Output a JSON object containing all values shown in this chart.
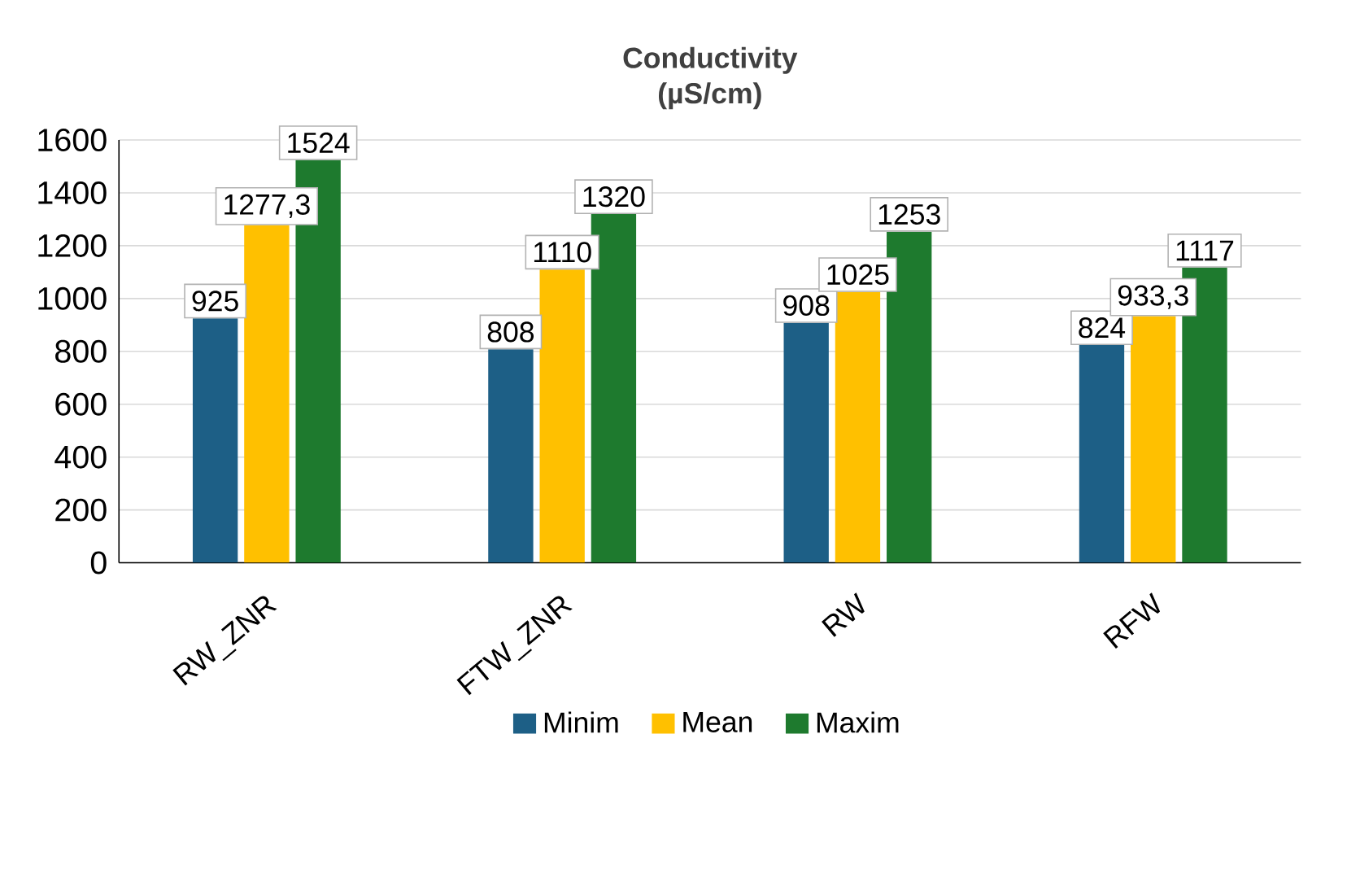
{
  "chart_data": {
    "type": "bar",
    "title": "Conductivity",
    "subtitle": "(µS/cm)",
    "categories": [
      "RW_ZNR",
      "FTW_ZNR",
      "RW",
      "RFW"
    ],
    "series": [
      {
        "name": "Minim",
        "color": "#1d5f86",
        "values": [
          925,
          808,
          908,
          824
        ],
        "value_labels": [
          "925",
          "808",
          "908",
          "824"
        ]
      },
      {
        "name": "Mean",
        "color": "#ffc000",
        "values": [
          1277.3,
          1110,
          1025,
          933.3
        ],
        "value_labels": [
          "1277,3",
          "1110",
          "1025",
          "933,3"
        ]
      },
      {
        "name": "Maxim",
        "color": "#1e7a2e",
        "values": [
          1524,
          1320,
          1253,
          1117
        ],
        "value_labels": [
          "1524",
          "1320",
          "1253",
          "1117"
        ]
      }
    ],
    "ylim": [
      0,
      1600
    ],
    "yticks": [
      0,
      200,
      400,
      600,
      800,
      1000,
      1200,
      1400,
      1600
    ],
    "grid": "y",
    "legend": "bottom"
  }
}
